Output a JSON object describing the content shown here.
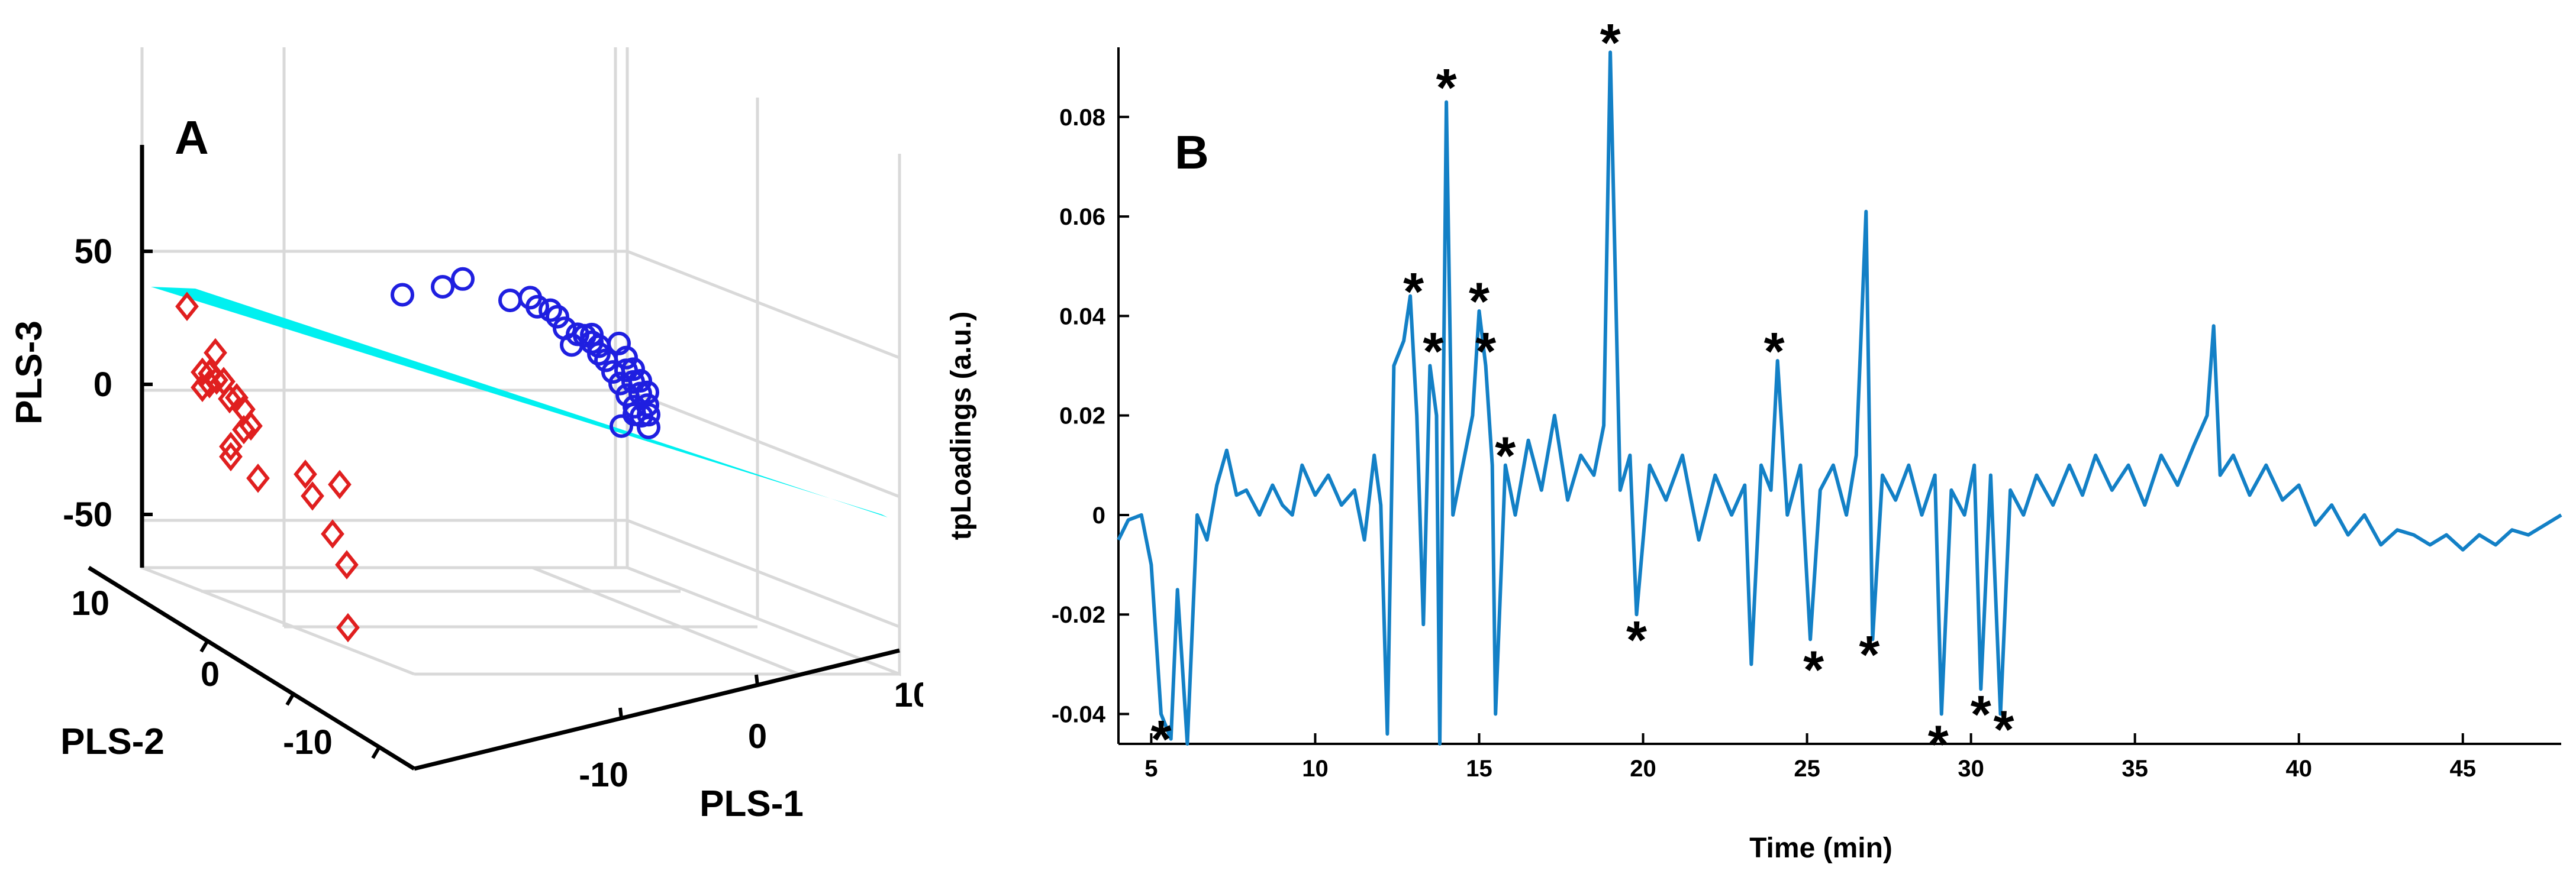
{
  "colors": {
    "class1": "#1F1FE0",
    "class2": "#E01F1F",
    "plane": "#00F0F0",
    "line": "#1380C6",
    "axis": "#000000",
    "grid": "#D9D9D9"
  },
  "chart_data": [
    {
      "type": "scatter3d",
      "panel_label": "A",
      "xlabel": "PLS-1",
      "ylabel": "PLS-2",
      "zlabel": "PLS-3",
      "xticks": [
        "-10",
        "0",
        "10"
      ],
      "yticks": [
        "10",
        "0",
        "-10"
      ],
      "zticks": [
        "50",
        "0",
        "-50"
      ],
      "xlim": [
        -20,
        10
      ],
      "ylim": [
        -15,
        10
      ],
      "zlim": [
        -70,
        60
      ],
      "grid": true,
      "separating_plane": true,
      "series": [
        {
          "marker": "circle",
          "points": [
            [
              -8,
              6,
              25
            ],
            [
              -6,
              6,
              30
            ],
            [
              -5,
              6,
              34
            ],
            [
              -2,
              5,
              30
            ],
            [
              -1,
              5,
              32
            ],
            [
              0,
              5,
              28
            ],
            [
              0,
              4,
              31
            ],
            [
              1,
              4,
              28
            ],
            [
              2,
              4,
              22
            ],
            [
              2,
              3,
              26
            ],
            [
              3,
              3,
              24
            ],
            [
              3,
              2,
              22
            ],
            [
              4,
              2,
              27
            ],
            [
              4,
              2,
              24
            ],
            [
              5,
              1,
              25
            ],
            [
              5,
              1,
              22
            ],
            [
              6,
              1,
              27
            ],
            [
              6,
              0,
              22
            ],
            [
              7,
              0,
              19
            ],
            [
              7,
              0,
              24
            ],
            [
              7,
              -1,
              20
            ],
            [
              8,
              -1,
              17
            ],
            [
              8,
              -1,
              22
            ],
            [
              8,
              -2,
              18
            ],
            [
              9,
              -2,
              15
            ],
            [
              9,
              -2,
              20
            ],
            [
              9,
              -3,
              16
            ],
            [
              10,
              -3,
              13
            ],
            [
              10,
              -3,
              18
            ],
            [
              10,
              -4,
              14
            ],
            [
              10,
              -4,
              11
            ],
            [
              10,
              -5,
              8
            ],
            [
              11,
              -5,
              13
            ],
            [
              12,
              -6,
              16
            ],
            [
              12,
              -6,
              11
            ]
          ]
        },
        {
          "marker": "diamond",
          "points": [
            [
              -20,
              8,
              6
            ],
            [
              -16,
              4,
              -2
            ],
            [
              -16,
              3,
              -8
            ],
            [
              -16,
              3,
              -14
            ],
            [
              -15,
              2,
              -6
            ],
            [
              -15,
              2,
              -10
            ],
            [
              -14,
              2,
              -15
            ],
            [
              -14,
              1,
              -6
            ],
            [
              -13,
              1,
              -12
            ],
            [
              -13,
              0,
              -4
            ],
            [
              -12,
              0,
              -14
            ],
            [
              -12,
              0,
              -22
            ],
            [
              -12,
              -1,
              -27
            ],
            [
              -12,
              -1,
              -31
            ],
            [
              -11,
              -1,
              -18
            ],
            [
              -10,
              -2,
              -36
            ],
            [
              -7,
              -3,
              -30
            ],
            [
              -6,
              -4,
              -36
            ],
            [
              -5,
              -4,
              -50
            ],
            [
              -4,
              -5,
              -28
            ],
            [
              -3,
              -6,
              -57
            ],
            [
              -1,
              -9,
              -75
            ]
          ]
        }
      ]
    },
    {
      "type": "line",
      "panel_label": "B",
      "xlabel": "Time (min)",
      "ylabel": "tpLoadings (a.u.)",
      "xlim": [
        4,
        48
      ],
      "ylim": [
        -0.046,
        0.094
      ],
      "xticks": [
        "5",
        "10",
        "15",
        "20",
        "25",
        "30",
        "35",
        "40",
        "45"
      ],
      "yticks": [
        "-0.04",
        "-0.02",
        "0",
        "0.02",
        "0.04",
        "0.06",
        "0.08"
      ],
      "annotation_symbol": "*",
      "annotations": [
        {
          "x": 5.3,
          "y": -0.044
        },
        {
          "x": 13.0,
          "y": 0.046
        },
        {
          "x": 13.6,
          "y": 0.034
        },
        {
          "x": 14.0,
          "y": 0.087
        },
        {
          "x": 15.0,
          "y": 0.044
        },
        {
          "x": 15.2,
          "y": 0.034
        },
        {
          "x": 15.8,
          "y": 0.013
        },
        {
          "x": 19.0,
          "y": 0.096
        },
        {
          "x": 19.8,
          "y": -0.024
        },
        {
          "x": 24.0,
          "y": 0.034
        },
        {
          "x": 25.2,
          "y": -0.03
        },
        {
          "x": 26.9,
          "y": -0.027
        },
        {
          "x": 29.0,
          "y": -0.045
        },
        {
          "x": 30.3,
          "y": -0.039
        },
        {
          "x": 31.0,
          "y": -0.042
        }
      ],
      "series": [
        {
          "points": [
            [
              4.0,
              -0.005
            ],
            [
              4.3,
              -0.001
            ],
            [
              4.7,
              0.0
            ],
            [
              5.0,
              -0.01
            ],
            [
              5.3,
              -0.04
            ],
            [
              5.6,
              -0.045
            ],
            [
              5.8,
              -0.015
            ],
            [
              6.1,
              -0.046
            ],
            [
              6.4,
              0.0
            ],
            [
              6.7,
              -0.005
            ],
            [
              7.0,
              0.006
            ],
            [
              7.3,
              0.013
            ],
            [
              7.6,
              0.004
            ],
            [
              7.9,
              0.005
            ],
            [
              8.3,
              0.0
            ],
            [
              8.7,
              0.006
            ],
            [
              9.0,
              0.002
            ],
            [
              9.3,
              0.0
            ],
            [
              9.6,
              0.01
            ],
            [
              10.0,
              0.004
            ],
            [
              10.4,
              0.008
            ],
            [
              10.8,
              0.002
            ],
            [
              11.2,
              0.005
            ],
            [
              11.5,
              -0.005
            ],
            [
              11.8,
              0.012
            ],
            [
              12.0,
              0.002
            ],
            [
              12.2,
              -0.044
            ],
            [
              12.4,
              0.03
            ],
            [
              12.7,
              0.035
            ],
            [
              12.9,
              0.044
            ],
            [
              13.1,
              0.02
            ],
            [
              13.3,
              -0.022
            ],
            [
              13.5,
              0.03
            ],
            [
              13.7,
              0.02
            ],
            [
              13.8,
              -0.046
            ],
            [
              14.0,
              0.083
            ],
            [
              14.2,
              0.0
            ],
            [
              14.5,
              0.01
            ],
            [
              14.8,
              0.02
            ],
            [
              15.0,
              0.041
            ],
            [
              15.2,
              0.03
            ],
            [
              15.4,
              0.01
            ],
            [
              15.5,
              -0.04
            ],
            [
              15.8,
              0.01
            ],
            [
              16.1,
              0.0
            ],
            [
              16.5,
              0.015
            ],
            [
              16.9,
              0.005
            ],
            [
              17.3,
              0.02
            ],
            [
              17.7,
              0.003
            ],
            [
              18.1,
              0.012
            ],
            [
              18.5,
              0.008
            ],
            [
              18.8,
              0.018
            ],
            [
              19.0,
              0.093
            ],
            [
              19.3,
              0.005
            ],
            [
              19.6,
              0.012
            ],
            [
              19.8,
              -0.02
            ],
            [
              20.2,
              0.01
            ],
            [
              20.7,
              0.003
            ],
            [
              21.2,
              0.012
            ],
            [
              21.7,
              -0.005
            ],
            [
              22.2,
              0.008
            ],
            [
              22.7,
              0.0
            ],
            [
              23.1,
              0.006
            ],
            [
              23.3,
              -0.03
            ],
            [
              23.6,
              0.01
            ],
            [
              23.9,
              0.005
            ],
            [
              24.1,
              0.031
            ],
            [
              24.4,
              0.0
            ],
            [
              24.8,
              0.01
            ],
            [
              25.1,
              -0.025
            ],
            [
              25.4,
              0.005
            ],
            [
              25.8,
              0.01
            ],
            [
              26.2,
              0.0
            ],
            [
              26.5,
              0.012
            ],
            [
              26.8,
              0.061
            ],
            [
              27.0,
              -0.025
            ],
            [
              27.3,
              0.008
            ],
            [
              27.7,
              0.003
            ],
            [
              28.1,
              0.01
            ],
            [
              28.5,
              0.0
            ],
            [
              28.9,
              0.008
            ],
            [
              29.1,
              -0.04
            ],
            [
              29.4,
              0.005
            ],
            [
              29.8,
              0.0
            ],
            [
              30.1,
              0.01
            ],
            [
              30.3,
              -0.035
            ],
            [
              30.6,
              0.008
            ],
            [
              30.9,
              -0.04
            ],
            [
              31.2,
              0.005
            ],
            [
              31.6,
              0.0
            ],
            [
              32.0,
              0.008
            ],
            [
              32.5,
              0.002
            ],
            [
              33.0,
              0.01
            ],
            [
              33.4,
              0.004
            ],
            [
              33.8,
              0.012
            ],
            [
              34.3,
              0.005
            ],
            [
              34.8,
              0.01
            ],
            [
              35.3,
              0.002
            ],
            [
              35.8,
              0.012
            ],
            [
              36.3,
              0.006
            ],
            [
              36.8,
              0.014
            ],
            [
              37.2,
              0.02
            ],
            [
              37.4,
              0.038
            ],
            [
              37.6,
              0.008
            ],
            [
              38.0,
              0.012
            ],
            [
              38.5,
              0.004
            ],
            [
              39.0,
              0.01
            ],
            [
              39.5,
              0.003
            ],
            [
              40.0,
              0.006
            ],
            [
              40.5,
              -0.002
            ],
            [
              41.0,
              0.002
            ],
            [
              41.5,
              -0.004
            ],
            [
              42.0,
              0.0
            ],
            [
              42.5,
              -0.006
            ],
            [
              43.0,
              -0.003
            ],
            [
              43.5,
              -0.004
            ],
            [
              44.0,
              -0.006
            ],
            [
              44.5,
              -0.004
            ],
            [
              45.0,
              -0.007
            ],
            [
              45.5,
              -0.004
            ],
            [
              46.0,
              -0.006
            ],
            [
              46.5,
              -0.003
            ],
            [
              47.0,
              -0.004
            ],
            [
              47.5,
              -0.002
            ],
            [
              48.0,
              0.0
            ]
          ]
        }
      ]
    }
  ]
}
